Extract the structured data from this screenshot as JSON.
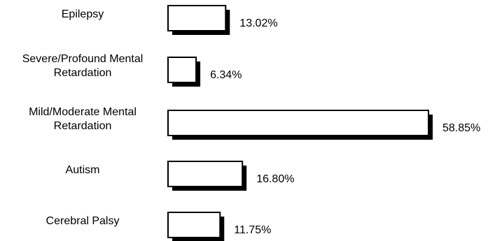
{
  "chart_data": {
    "type": "bar",
    "orientation": "horizontal",
    "categories": [
      [
        "Epilepsy"
      ],
      [
        "Severe/Profound Mental",
        "Retardation"
      ],
      [
        "Mild/Moderate Mental",
        "Retardation"
      ],
      [
        "Autism"
      ],
      [
        "Cerebral Palsy"
      ]
    ],
    "values": [
      13.02,
      6.34,
      58.85,
      16.8,
      11.75
    ],
    "value_labels": [
      "13.02%",
      "6.34%",
      "58.85%",
      "16.80%",
      "11.75%"
    ],
    "title": "",
    "xlabel": "",
    "ylabel": "",
    "xlim": [
      0,
      58.85
    ],
    "grid": false,
    "legend": "none",
    "bar_fill": "#ffffff",
    "bar_stroke": "#000000",
    "shadow_color": "#000000"
  }
}
